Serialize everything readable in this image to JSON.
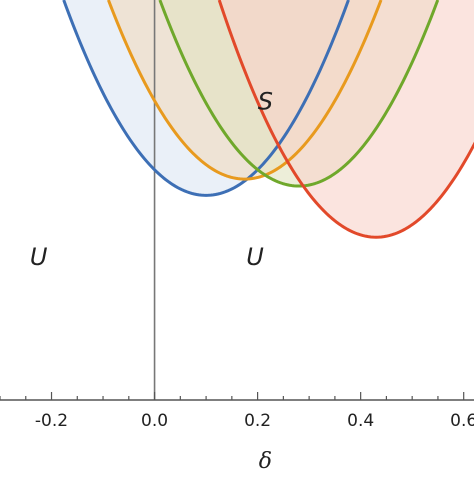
{
  "chart_data": {
    "type": "area",
    "title": "",
    "xlabel": "δ",
    "ylabel": "",
    "xlim": [
      -0.3,
      0.62
    ],
    "ylim": [
      -1.62,
      0.1
    ],
    "x_ticks": [
      -0.2,
      0.0,
      0.2,
      0.4,
      0.6
    ],
    "x_tick_labels": [
      "-0.2",
      "0.0",
      "0.2",
      "0.4",
      "0.6"
    ],
    "y_ticks": [],
    "grid": false,
    "legend": "none",
    "region_labels": [
      {
        "text": "S",
        "x": 0.215,
        "y": -0.37
      },
      {
        "text": "U",
        "x": -0.225,
        "y": -1.04
      },
      {
        "text": "U",
        "x": 0.195,
        "y": -1.04
      }
    ],
    "series": [
      {
        "color": "#3d6fb5",
        "fill": "#dde6f3",
        "vertex": [
          0.1,
          -0.74
        ],
        "curvature": 11.0
      },
      {
        "color": "#e89a1e",
        "fill": "#f1dcc0",
        "vertex": [
          0.175,
          -0.67
        ],
        "curvature": 11.0
      },
      {
        "color": "#6fa82b",
        "fill": "#e2e3c2",
        "vertex": [
          0.28,
          -0.7
        ],
        "curvature": 11.0
      },
      {
        "color": "#e2492a",
        "fill": "#f8d3cc",
        "vertex": [
          0.43,
          -0.92
        ],
        "curvature": 11.0
      }
    ]
  }
}
